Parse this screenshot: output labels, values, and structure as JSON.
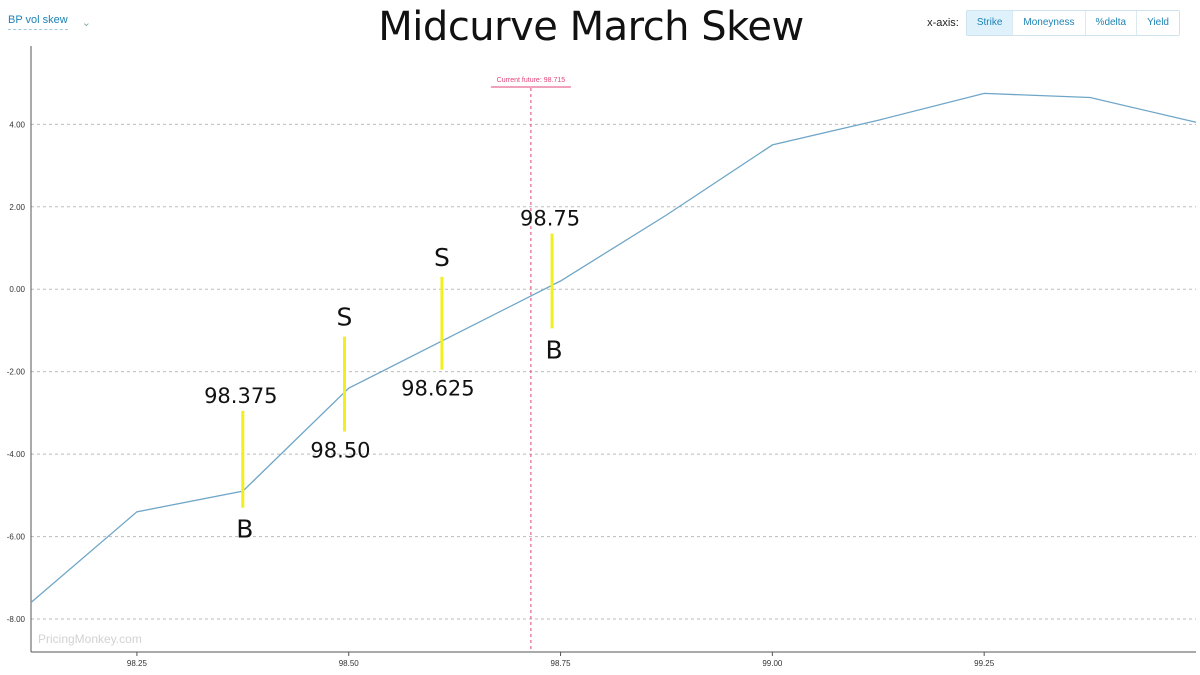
{
  "dropdown": {
    "label": "BP vol skew",
    "icon": "chevron-down-icon"
  },
  "title": "Midcurve March Skew",
  "xaxis_toggle": {
    "label": "x-axis:",
    "options": [
      "Strike",
      "Moneyness",
      "%delta",
      "Yield"
    ],
    "active": "Strike"
  },
  "watermark": "PricingMonkey.com",
  "chart_data": {
    "type": "line",
    "title": "Midcurve March Skew",
    "xlabel": "",
    "ylabel": "",
    "xlim": [
      98.125,
      99.5
    ],
    "ylim": [
      -8.8,
      5.9
    ],
    "grid": true,
    "x_ticks": [
      "98.25",
      "98.50",
      "98.75",
      "99.00",
      "99.25"
    ],
    "x_tick_values": [
      98.25,
      98.5,
      98.75,
      99.0,
      99.25
    ],
    "y_ticks": [
      "4.00",
      "2.00",
      "0.00",
      "-2.00",
      "-4.00",
      "-6.00",
      "-8.00"
    ],
    "y_tick_values": [
      4,
      2,
      0,
      -2,
      -4,
      -6,
      -8
    ],
    "series": [
      {
        "color": "#6fa6c7",
        "x": [
          98.125,
          98.25,
          98.375,
          98.5,
          98.625,
          98.75,
          98.875,
          99.0,
          99.125,
          99.25,
          99.375,
          99.5
        ],
        "y": [
          -7.6,
          -5.4,
          -4.9,
          -2.4,
          -1.1,
          0.2,
          1.8,
          3.5,
          4.1,
          4.75,
          4.65,
          4.05
        ]
      }
    ],
    "current_future": {
      "label": "Current future: 98.715",
      "value": 98.715,
      "color": "#e0457b"
    },
    "annotations": [
      {
        "x": 98.375,
        "y_from": -5.3,
        "y_to": -2.95,
        "value_label": "98.375",
        "value_pos": "above",
        "side": "B",
        "side_pos": "below",
        "color": "#f2ef1f"
      },
      {
        "x": 98.495,
        "y_from": -3.45,
        "y_to": -1.15,
        "value_label": "98.50",
        "value_pos": "below",
        "side": "S",
        "side_pos": "above",
        "color": "#f2ef1f"
      },
      {
        "x": 98.61,
        "y_from": -1.95,
        "y_to": 0.3,
        "value_label": "98.625",
        "value_pos": "below",
        "side": "S",
        "side_pos": "above",
        "color": "#f2ef1f"
      },
      {
        "x": 98.74,
        "y_from": -0.95,
        "y_to": 1.35,
        "value_label": "98.75",
        "value_pos": "above",
        "side": "B",
        "side_pos": "below",
        "color": "#f2ef1f"
      }
    ],
    "colors": {
      "grid": "#bbbbbb",
      "axis": "#555555",
      "tick_text": "#333333"
    }
  }
}
